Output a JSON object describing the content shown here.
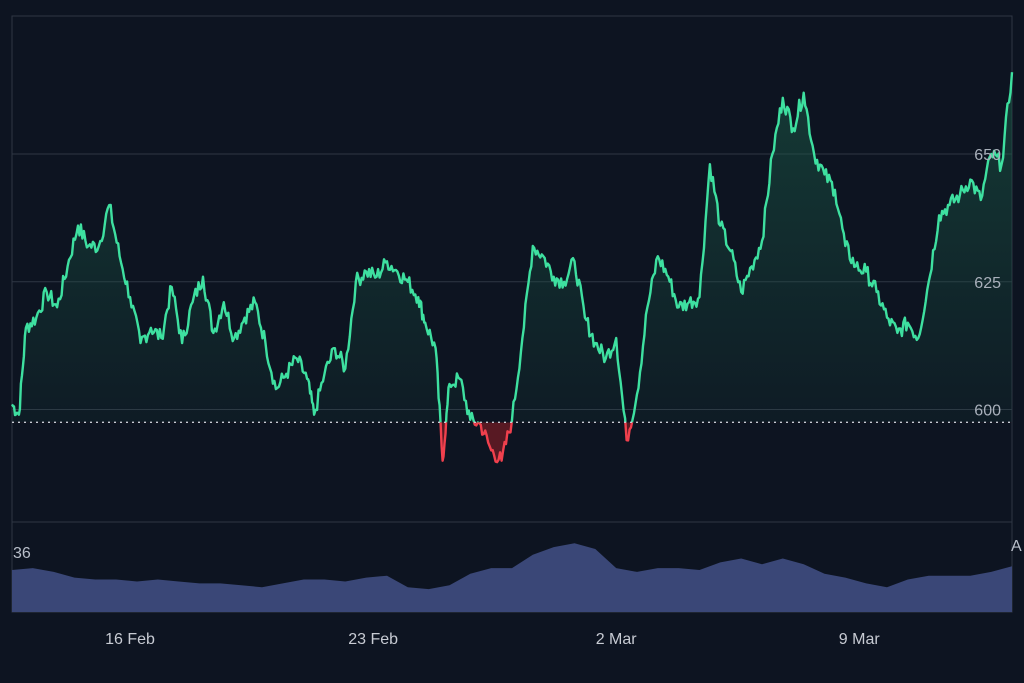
{
  "colors": {
    "background": "#0d1421",
    "grid": "#2f3644",
    "line_up": "#3ee0a0",
    "line_down": "#f0404d",
    "fill_up_top": "#1b5b47",
    "fill_down": "#6b1a24",
    "volume": "#3a4777",
    "baseline": "#c7cbd3"
  },
  "corner_labels": {
    "volume_max": "36",
    "right_edge": "A"
  },
  "chart_data": {
    "type": "line",
    "title": "",
    "xlabel": "",
    "ylabel": "",
    "x_ticks": [
      {
        "label": "16 Feb",
        "x": 4
      },
      {
        "label": "23 Feb",
        "x": 11
      },
      {
        "label": "2 Mar",
        "x": 18
      },
      {
        "label": "9 Mar",
        "x": 25
      }
    ],
    "y_ticks": [
      600,
      625,
      650
    ],
    "ylim": [
      578,
      677
    ],
    "xlim": [
      0.6,
      29.4
    ],
    "baseline": 597.5,
    "grid": true,
    "series": [
      {
        "values": [
          [
            0.6,
            601
          ],
          [
            0.8,
            599
          ],
          [
            1.0,
            616
          ],
          [
            1.3,
            618
          ],
          [
            1.6,
            623
          ],
          [
            1.9,
            620
          ],
          [
            2.2,
            628
          ],
          [
            2.5,
            636
          ],
          [
            2.8,
            632
          ],
          [
            3.1,
            632
          ],
          [
            3.4,
            640
          ],
          [
            3.7,
            630
          ],
          [
            4.0,
            622
          ],
          [
            4.3,
            613
          ],
          [
            4.6,
            616
          ],
          [
            4.9,
            614
          ],
          [
            5.2,
            624
          ],
          [
            5.5,
            613
          ],
          [
            5.8,
            621
          ],
          [
            6.1,
            626
          ],
          [
            6.4,
            615
          ],
          [
            6.7,
            621
          ],
          [
            7.0,
            614
          ],
          [
            7.3,
            618
          ],
          [
            7.6,
            621
          ],
          [
            7.9,
            613
          ],
          [
            8.2,
            604
          ],
          [
            8.5,
            607
          ],
          [
            8.8,
            610
          ],
          [
            9.1,
            606
          ],
          [
            9.3,
            599
          ],
          [
            9.6,
            607
          ],
          [
            9.9,
            612
          ],
          [
            10.2,
            608
          ],
          [
            10.5,
            625
          ],
          [
            10.8,
            627
          ],
          [
            11.1,
            626
          ],
          [
            11.4,
            629
          ],
          [
            11.7,
            627
          ],
          [
            12.0,
            625
          ],
          [
            12.3,
            622
          ],
          [
            12.5,
            617
          ],
          [
            12.8,
            612
          ],
          [
            13.0,
            590
          ],
          [
            13.2,
            605
          ],
          [
            13.5,
            606
          ],
          [
            13.8,
            598
          ],
          [
            14.1,
            597
          ],
          [
            14.4,
            592
          ],
          [
            14.7,
            590
          ],
          [
            15.0,
            598
          ],
          [
            15.3,
            614
          ],
          [
            15.6,
            632
          ],
          [
            15.9,
            630
          ],
          [
            16.2,
            626
          ],
          [
            16.5,
            625
          ],
          [
            16.8,
            629
          ],
          [
            17.1,
            618
          ],
          [
            17.4,
            613
          ],
          [
            17.7,
            610
          ],
          [
            18.0,
            614
          ],
          [
            18.3,
            594
          ],
          [
            18.6,
            603
          ],
          [
            18.9,
            620
          ],
          [
            19.2,
            630
          ],
          [
            19.5,
            626
          ],
          [
            19.8,
            620
          ],
          [
            20.1,
            621
          ],
          [
            20.4,
            622
          ],
          [
            20.7,
            648
          ],
          [
            21.0,
            636
          ],
          [
            21.3,
            631
          ],
          [
            21.6,
            623
          ],
          [
            21.9,
            628
          ],
          [
            22.2,
            633
          ],
          [
            22.5,
            650
          ],
          [
            22.8,
            661
          ],
          [
            23.1,
            655
          ],
          [
            23.4,
            662
          ],
          [
            23.7,
            650
          ],
          [
            24.0,
            646
          ],
          [
            24.3,
            643
          ],
          [
            24.6,
            632
          ],
          [
            24.9,
            628
          ],
          [
            25.2,
            627
          ],
          [
            25.5,
            623
          ],
          [
            25.8,
            618
          ],
          [
            26.1,
            615
          ],
          [
            26.4,
            617
          ],
          [
            26.7,
            614
          ],
          [
            27.0,
            625
          ],
          [
            27.3,
            638
          ],
          [
            27.6,
            640
          ],
          [
            27.9,
            642
          ],
          [
            28.2,
            645
          ],
          [
            28.5,
            641
          ],
          [
            28.8,
            650
          ],
          [
            29.1,
            648
          ],
          [
            29.4,
            666
          ]
        ]
      }
    ],
    "volume": {
      "ylim": [
        0,
        44
      ],
      "max_label": 36,
      "values": [
        [
          0.6,
          22
        ],
        [
          1.2,
          23
        ],
        [
          1.8,
          21
        ],
        [
          2.4,
          18
        ],
        [
          3.0,
          17
        ],
        [
          3.6,
          17
        ],
        [
          4.2,
          16
        ],
        [
          4.8,
          17
        ],
        [
          5.4,
          16
        ],
        [
          6.0,
          15
        ],
        [
          6.6,
          15
        ],
        [
          7.2,
          14
        ],
        [
          7.8,
          13
        ],
        [
          8.4,
          15
        ],
        [
          9.0,
          17
        ],
        [
          9.6,
          17
        ],
        [
          10.2,
          16
        ],
        [
          10.8,
          18
        ],
        [
          11.4,
          19
        ],
        [
          12.0,
          13
        ],
        [
          12.6,
          12
        ],
        [
          13.2,
          14
        ],
        [
          13.8,
          20
        ],
        [
          14.4,
          23
        ],
        [
          15.0,
          23
        ],
        [
          15.6,
          30
        ],
        [
          16.2,
          34
        ],
        [
          16.8,
          36
        ],
        [
          17.4,
          33
        ],
        [
          18.0,
          23
        ],
        [
          18.6,
          21
        ],
        [
          19.2,
          23
        ],
        [
          19.8,
          23
        ],
        [
          20.4,
          22
        ],
        [
          21.0,
          26
        ],
        [
          21.6,
          28
        ],
        [
          22.2,
          25
        ],
        [
          22.8,
          28
        ],
        [
          23.4,
          25
        ],
        [
          24.0,
          20
        ],
        [
          24.6,
          18
        ],
        [
          25.2,
          15
        ],
        [
          25.8,
          13
        ],
        [
          26.4,
          17
        ],
        [
          27.0,
          19
        ],
        [
          27.6,
          19
        ],
        [
          28.2,
          19
        ],
        [
          28.8,
          21
        ],
        [
          29.4,
          24
        ]
      ]
    }
  }
}
